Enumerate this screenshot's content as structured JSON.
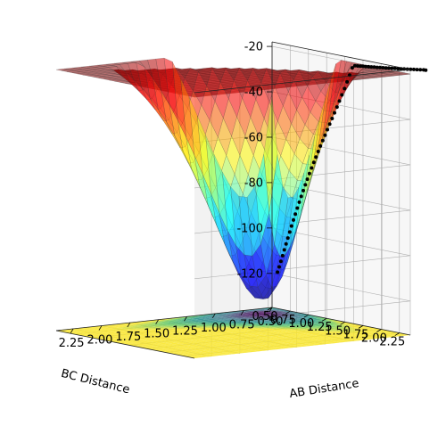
{
  "chart_data": {
    "type": "surface3d",
    "title": "",
    "xlabel": "AB Distance",
    "ylabel": "BC Distance",
    "zlabel": "",
    "x_ticks": [
      "0.50",
      "0.75",
      "1.00",
      "1.25",
      "1.50",
      "1.75",
      "2.00",
      "2.25"
    ],
    "y_ticks": [
      "0.50",
      "0.75",
      "1.00",
      "1.25",
      "1.50",
      "1.75",
      "2.00",
      "2.25"
    ],
    "z_ticks": [
      "-20",
      "-40",
      "-60",
      "-80",
      "-100",
      "-120"
    ],
    "xlim": [
      0.5,
      2.4
    ],
    "ylim": [
      0.5,
      2.4
    ],
    "zlim": [
      -135,
      -18
    ],
    "colormap": "jet",
    "contour_colormap": "viridis",
    "trajectory_color": "#000000",
    "grid": true,
    "pane_color": "#f2f2f2",
    "grid_color": "#b0b0b0"
  }
}
